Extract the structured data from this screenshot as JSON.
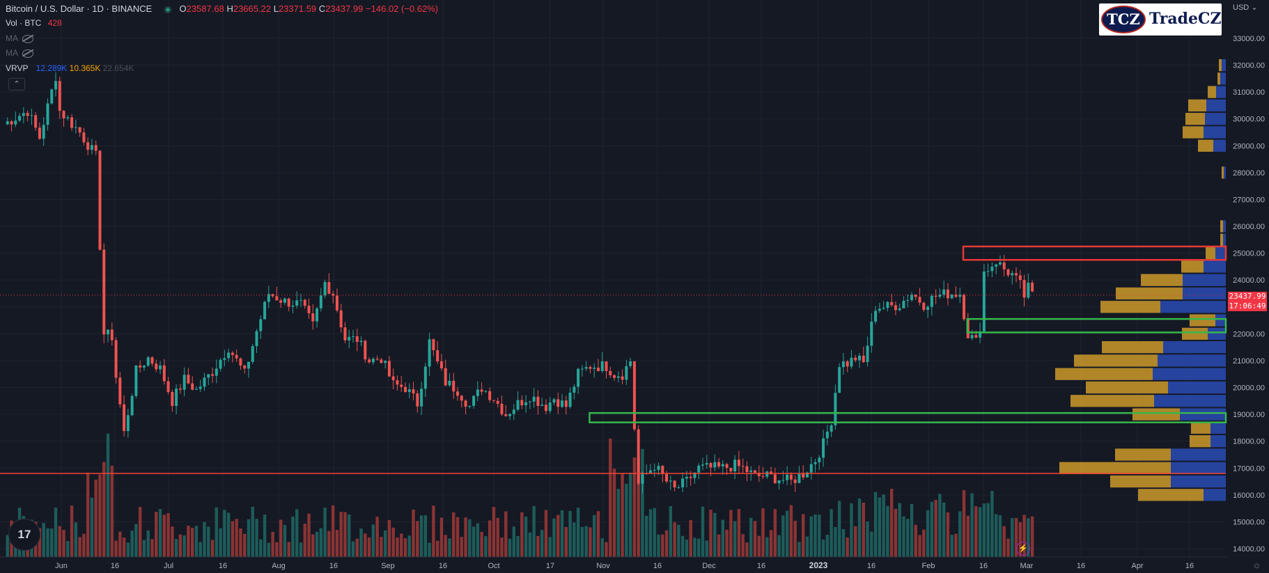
{
  "header": {
    "symbol": "Bitcoin / U.S. Dollar · 1D · BINANCE",
    "open_label": "O",
    "open": "23587.68",
    "high_label": "H",
    "high": "23665.22",
    "low_label": "L",
    "low": "23371.59",
    "close_label": "C",
    "close": "23437.99",
    "change": "−146.02 (−0.62%)"
  },
  "indicators": {
    "vol_label": "Vol · BTC",
    "vol_value": "428",
    "ma1_label": "MA",
    "ma2_label": "MA",
    "vrvp_label": "VRVP",
    "vrvp_up": "12.289K",
    "vrvp_down": "10.365K",
    "vrvp_total": "22.654K",
    "collapse_glyph": "⌃"
  },
  "logo": {
    "badge": "TCZ",
    "word": "TradeCZ",
    "icon": "tradecz-logo"
  },
  "axis": {
    "currency": "USD ⌄"
  },
  "last_price": {
    "price": "23437.99",
    "countdown": "17:06:49"
  },
  "tv_logo": {
    "text": "17",
    "icon": "tradingview-logo"
  },
  "misc": {
    "bolt_icon": "lightning-icon",
    "bolt": "⚡",
    "gear_icon": "gear-icon",
    "gear": "☼"
  },
  "colors": {
    "background": "#151924",
    "up": "#26a69a",
    "down": "#ef5350",
    "vol_up": "#1d5c5a",
    "vol_down": "#8a3434",
    "vp_up": "#2b4dbd",
    "vp_down": "#d7a12a",
    "red_box": "#e53935",
    "green_box": "#35b84a",
    "support": "#f44336"
  },
  "chart_data": {
    "type": "candlestick",
    "ylim": [
      14000,
      33500
    ],
    "y_ticks": [
      "33000.00",
      "32000.00",
      "31000.00",
      "30000.00",
      "29000.00",
      "28000.00",
      "27000.00",
      "26000.00",
      "25000.00",
      "24000.00",
      "22000.00",
      "21000.00",
      "20000.00",
      "19000.00",
      "18000.00",
      "17000.00",
      "16000.00",
      "15000.00",
      "14000.00"
    ],
    "x_ticks": [
      "Jun",
      "16",
      "Jul",
      "16",
      "Aug",
      "16",
      "Sep",
      "16",
      "Oct",
      "17",
      "Nov",
      "16",
      "Dec",
      "16",
      "2023",
      "16",
      "Feb",
      "16",
      "Mar",
      "16",
      "Apr",
      "16"
    ],
    "x_bold": [
      "2023"
    ],
    "key_price_path": [
      [
        0,
        29800
      ],
      [
        6,
        30300
      ],
      [
        9,
        29300
      ],
      [
        13,
        31600
      ],
      [
        14,
        30300
      ],
      [
        19,
        29500
      ],
      [
        23,
        28600
      ],
      [
        25,
        22000
      ],
      [
        27,
        21900
      ],
      [
        28,
        20400
      ],
      [
        30,
        18300
      ],
      [
        33,
        20600
      ],
      [
        36,
        21100
      ],
      [
        39,
        20700
      ],
      [
        42,
        19500
      ],
      [
        45,
        20300
      ],
      [
        48,
        19900
      ],
      [
        52,
        20600
      ],
      [
        56,
        21500
      ],
      [
        60,
        20500
      ],
      [
        63,
        22100
      ],
      [
        66,
        23500
      ],
      [
        70,
        23200
      ],
      [
        74,
        23100
      ],
      [
        77,
        22300
      ],
      [
        80,
        23900
      ],
      [
        82,
        23500
      ],
      [
        85,
        21800
      ],
      [
        88,
        21800
      ],
      [
        91,
        21000
      ],
      [
        94,
        21100
      ],
      [
        97,
        20100
      ],
      [
        100,
        20000
      ],
      [
        103,
        19400
      ],
      [
        106,
        21700
      ],
      [
        108,
        20900
      ],
      [
        110,
        20200
      ],
      [
        113,
        19900
      ],
      [
        116,
        19300
      ],
      [
        119,
        20000
      ],
      [
        122,
        19600
      ],
      [
        125,
        19000
      ],
      [
        128,
        19400
      ],
      [
        131,
        19700
      ],
      [
        135,
        19300
      ],
      [
        137,
        19600
      ],
      [
        140,
        19300
      ],
      [
        143,
        20500
      ],
      [
        146,
        20800
      ],
      [
        150,
        20800
      ],
      [
        152,
        20500
      ],
      [
        154,
        20500
      ],
      [
        156,
        21000
      ],
      [
        157,
        18500
      ],
      [
        158,
        16400
      ],
      [
        160,
        16800
      ],
      [
        162,
        17100
      ],
      [
        165,
        16500
      ],
      [
        167,
        16200
      ],
      [
        170,
        16500
      ],
      [
        173,
        17000
      ],
      [
        176,
        17000
      ],
      [
        179,
        17000
      ],
      [
        182,
        17100
      ],
      [
        184,
        17000
      ],
      [
        187,
        16700
      ],
      [
        190,
        16700
      ],
      [
        193,
        16600
      ],
      [
        196,
        16500
      ],
      [
        199,
        16800
      ],
      [
        202,
        17300
      ],
      [
        204,
        17900
      ],
      [
        206,
        18800
      ],
      [
        208,
        20900
      ],
      [
        210,
        20900
      ],
      [
        212,
        21100
      ],
      [
        214,
        20900
      ],
      [
        217,
        23000
      ],
      [
        220,
        23000
      ],
      [
        223,
        23100
      ],
      [
        226,
        23500
      ],
      [
        229,
        23100
      ],
      [
        232,
        23400
      ],
      [
        235,
        23500
      ],
      [
        238,
        23500
      ],
      [
        240,
        22000
      ],
      [
        242,
        21700
      ],
      [
        243,
        22300
      ],
      [
        244,
        24300
      ],
      [
        247,
        24700
      ],
      [
        249,
        24400
      ],
      [
        251,
        24200
      ],
      [
        253,
        23800
      ],
      [
        254,
        23400
      ],
      [
        255,
        23700
      ],
      [
        256,
        23440
      ]
    ],
    "volume_profile": [
      {
        "price": 16000,
        "up": 32,
        "down": 94
      },
      {
        "price": 16500,
        "up": 79,
        "down": 87
      },
      {
        "price": 17000,
        "up": 79,
        "down": 160
      },
      {
        "price": 17500,
        "up": 79,
        "down": 80
      },
      {
        "price": 18000,
        "up": 22,
        "down": 30
      },
      {
        "price": 18500,
        "up": 22,
        "down": 28
      },
      {
        "price": 19000,
        "up": 66,
        "down": 68
      },
      {
        "price": 19500,
        "up": 103,
        "down": 120
      },
      {
        "price": 20000,
        "up": 83,
        "down": 118
      },
      {
        "price": 20500,
        "up": 105,
        "down": 140
      },
      {
        "price": 21000,
        "up": 98,
        "down": 120
      },
      {
        "price": 21500,
        "up": 90,
        "down": 88
      },
      {
        "price": 22000,
        "up": 26,
        "down": 37
      },
      {
        "price": 22500,
        "up": 15,
        "down": 37
      },
      {
        "price": 23000,
        "up": 94,
        "down": 86
      },
      {
        "price": 23500,
        "up": 62,
        "down": 96
      },
      {
        "price": 24000,
        "up": 62,
        "down": 60
      },
      {
        "price": 24500,
        "up": 32,
        "down": 32
      },
      {
        "price": 25000,
        "up": 15,
        "down": 14
      },
      {
        "price": 25500,
        "up": 4,
        "down": 4
      },
      {
        "price": 26000,
        "up": 4,
        "down": 4
      },
      {
        "price": 28000,
        "up": 3,
        "down": 3
      },
      {
        "price": 29000,
        "up": 18,
        "down": 22
      },
      {
        "price": 29500,
        "up": 32,
        "down": 30
      },
      {
        "price": 30000,
        "up": 30,
        "down": 28
      },
      {
        "price": 30500,
        "up": 28,
        "down": 26
      },
      {
        "price": 31000,
        "up": 14,
        "down": 12
      },
      {
        "price": 31500,
        "up": 8,
        "down": 4
      },
      {
        "price": 32000,
        "up": 6,
        "down": 4
      }
    ],
    "zones": [
      {
        "kind": "resistance",
        "color": "red",
        "low": 24750,
        "high": 25250,
        "from_day": 239
      },
      {
        "kind": "support",
        "color": "green",
        "low": 22050,
        "high": 22550,
        "from_day": 240
      },
      {
        "kind": "support",
        "color": "green",
        "low": 18700,
        "high": 19050,
        "from_day": 146
      }
    ],
    "horizontal_line": 16800,
    "current_price": 23437.99
  }
}
